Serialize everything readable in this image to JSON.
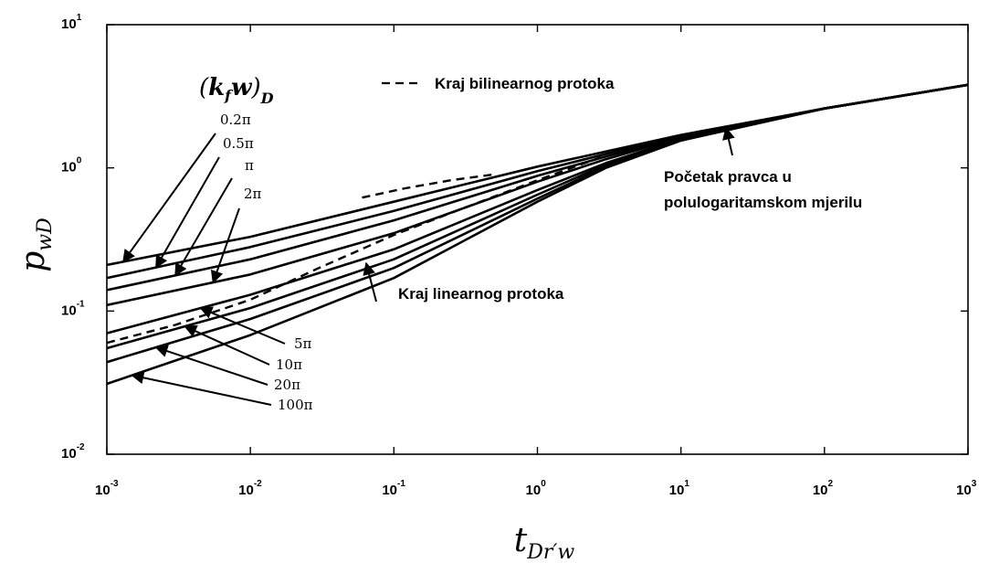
{
  "chart_data": {
    "type": "line",
    "xscale": "log",
    "yscale": "log",
    "xlim": [
      0.001,
      1000
    ],
    "ylim": [
      0.01,
      10
    ],
    "grid": false,
    "xlabel": "t_Dr'w",
    "ylabel": "p_wD",
    "x_tick_labels": [
      {
        "base": "10",
        "exp": "-3"
      },
      {
        "base": "10",
        "exp": "-2"
      },
      {
        "base": "10",
        "exp": "-1"
      },
      {
        "base": "10",
        "exp": "0"
      },
      {
        "base": "10",
        "exp": "1"
      },
      {
        "base": "10",
        "exp": "2"
      },
      {
        "base": "10",
        "exp": "3"
      }
    ],
    "y_tick_labels": [
      {
        "base": "10",
        "exp": "-2"
      },
      {
        "base": "10",
        "exp": "-1"
      },
      {
        "base": "10",
        "exp": "0"
      },
      {
        "base": "10",
        "exp": "1"
      }
    ],
    "parameter_label": "(k_f w)_D",
    "series": [
      {
        "label": "0.2π",
        "x": [
          0.001,
          0.01,
          0.1,
          1,
          3,
          10,
          100,
          1000
        ],
        "y": [
          0.21,
          0.33,
          0.58,
          1.02,
          1.3,
          1.7,
          2.6,
          3.8
        ]
      },
      {
        "label": "0.5π",
        "x": [
          0.001,
          0.01,
          0.1,
          1,
          3,
          10,
          100,
          1000
        ],
        "y": [
          0.17,
          0.28,
          0.5,
          0.95,
          1.25,
          1.68,
          2.6,
          3.8
        ]
      },
      {
        "label": "π",
        "x": [
          0.001,
          0.01,
          0.1,
          1,
          3,
          10,
          100,
          1000
        ],
        "y": [
          0.14,
          0.23,
          0.43,
          0.88,
          1.2,
          1.65,
          2.6,
          3.8
        ]
      },
      {
        "label": "2π",
        "x": [
          0.001,
          0.01,
          0.1,
          1,
          3,
          10,
          100,
          1000
        ],
        "y": [
          0.11,
          0.18,
          0.35,
          0.8,
          1.15,
          1.63,
          2.6,
          3.8
        ]
      },
      {
        "label": "5π",
        "x": [
          0.001,
          0.01,
          0.1,
          1,
          3,
          10,
          100,
          1000
        ],
        "y": [
          0.07,
          0.13,
          0.27,
          0.7,
          1.08,
          1.6,
          2.6,
          3.8
        ]
      },
      {
        "label": "10π",
        "x": [
          0.001,
          0.01,
          0.1,
          1,
          3,
          10,
          100,
          1000
        ],
        "y": [
          0.055,
          0.105,
          0.23,
          0.65,
          1.05,
          1.58,
          2.6,
          3.8
        ]
      },
      {
        "label": "20π",
        "x": [
          0.001,
          0.01,
          0.1,
          1,
          3,
          10,
          100,
          1000
        ],
        "y": [
          0.044,
          0.088,
          0.2,
          0.61,
          1.02,
          1.56,
          2.6,
          3.8
        ]
      },
      {
        "label": "100π",
        "x": [
          0.001,
          0.01,
          0.1,
          1,
          3,
          10,
          100,
          1000
        ],
        "y": [
          0.031,
          0.068,
          0.17,
          0.58,
          1.0,
          1.55,
          2.6,
          3.8
        ]
      }
    ],
    "end_bilinear_curve": {
      "x": [
        0.001,
        0.003,
        0.01,
        0.03,
        0.1,
        0.3,
        1,
        3
      ],
      "y": [
        0.06,
        0.08,
        0.12,
        0.2,
        0.34,
        0.52,
        0.82,
        1.22
      ]
    },
    "end_bilinear_upper": {
      "x": [
        0.06,
        0.12,
        0.25,
        0.5
      ],
      "y": [
        0.62,
        0.72,
        0.82,
        0.9
      ]
    },
    "legend": {
      "label": "Kraj bilinearnog protoka",
      "style": "dashed",
      "placement": "top-center"
    },
    "annotations": {
      "end_linear": "Kraj linearnog protoka",
      "semilog_start_line1": "Početak pravca u",
      "semilog_start_line2": "polulogaritamskom mjerilu"
    },
    "arrow_targets": {
      "end_linear": {
        "x": 0.07,
        "y": 0.26
      },
      "semilog_start": {
        "x": 20,
        "y": 1.85
      }
    }
  }
}
